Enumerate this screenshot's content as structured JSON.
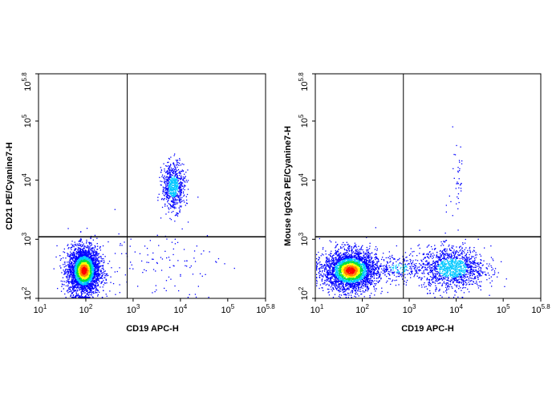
{
  "chart_data": [
    {
      "type": "scatter",
      "name": "left-plot",
      "xlabel": "CD19 APC-H",
      "ylabel": "CD21 PE/Cyanine7-H",
      "xscale": "log",
      "yscale": "log",
      "xlim": [
        10,
        630957
      ],
      "ylim": [
        100,
        630957
      ],
      "x_ticks": [
        {
          "base": "10",
          "exp": "1",
          "value": 10
        },
        {
          "base": "10",
          "exp": "2",
          "value": 100
        },
        {
          "base": "10",
          "exp": "3",
          "value": 1000
        },
        {
          "base": "10",
          "exp": "4",
          "value": 10000
        },
        {
          "base": "10",
          "exp": "5",
          "value": 100000
        },
        {
          "base": "10",
          "exp": "5.8",
          "value": 630957
        }
      ],
      "y_ticks": [
        {
          "base": "10",
          "exp": "2",
          "value": 100
        },
        {
          "base": "10",
          "exp": "3",
          "value": 1000
        },
        {
          "base": "10",
          "exp": "4",
          "value": 10000
        },
        {
          "base": "10",
          "exp": "5",
          "value": 100000
        },
        {
          "base": "10",
          "exp": "5.8",
          "value": 630957
        }
      ],
      "quadrant_gate": {
        "x": 750,
        "y": 1100
      },
      "populations": [
        {
          "center_x": 90,
          "center_y": 300,
          "spread_log_x": 0.17,
          "spread_log_y": 0.2,
          "count": 3200,
          "density": "high"
        },
        {
          "center_x": 7000,
          "center_y": 8000,
          "spread_log_x": 0.12,
          "spread_log_y": 0.2,
          "count": 700,
          "density": "medium"
        },
        {
          "center_x": 3000,
          "center_y": 400,
          "spread_log_x": 0.7,
          "spread_log_y": 0.3,
          "count": 120,
          "density": "sparse"
        }
      ]
    },
    {
      "type": "scatter",
      "name": "right-plot",
      "xlabel": "CD19 APC-H",
      "ylabel": "Mouse IgG2a PE/Cyanine7-H",
      "xscale": "log",
      "yscale": "log",
      "xlim": [
        10,
        630957
      ],
      "ylim": [
        100,
        630957
      ],
      "x_ticks": [
        {
          "base": "10",
          "exp": "1",
          "value": 10
        },
        {
          "base": "10",
          "exp": "2",
          "value": 100
        },
        {
          "base": "10",
          "exp": "3",
          "value": 1000
        },
        {
          "base": "10",
          "exp": "4",
          "value": 10000
        },
        {
          "base": "10",
          "exp": "5",
          "value": 100000
        },
        {
          "base": "10",
          "exp": "5.8",
          "value": 630957
        }
      ],
      "y_ticks": [
        {
          "base": "10",
          "exp": "2",
          "value": 100
        },
        {
          "base": "10",
          "exp": "3",
          "value": 1000
        },
        {
          "base": "10",
          "exp": "4",
          "value": 10000
        },
        {
          "base": "10",
          "exp": "5",
          "value": 100000
        },
        {
          "base": "10",
          "exp": "5.8",
          "value": 630957
        }
      ],
      "quadrant_gate": {
        "x": 750,
        "y": 1100
      },
      "populations": [
        {
          "center_x": 55,
          "center_y": 300,
          "spread_log_x": 0.28,
          "spread_log_y": 0.17,
          "count": 3000,
          "density": "high"
        },
        {
          "center_x": 8000,
          "center_y": 330,
          "spread_log_x": 0.35,
          "spread_log_y": 0.18,
          "count": 1300,
          "density": "medium"
        },
        {
          "center_x": 600,
          "center_y": 330,
          "spread_log_x": 0.3,
          "spread_log_y": 0.12,
          "count": 250,
          "density": "low"
        },
        {
          "center_x": 10000,
          "center_y": 10000,
          "spread_log_x": 0.08,
          "spread_log_y": 0.45,
          "count": 40,
          "density": "sparse"
        }
      ]
    }
  ],
  "colors": {
    "low": "#0000ff",
    "medium": "#00c8ff",
    "high_1": "#00e040",
    "high_2": "#ffff00",
    "high_3": "#ff8000",
    "peak": "#ff0000",
    "gate_line": "#000000",
    "frame": "#000000"
  }
}
